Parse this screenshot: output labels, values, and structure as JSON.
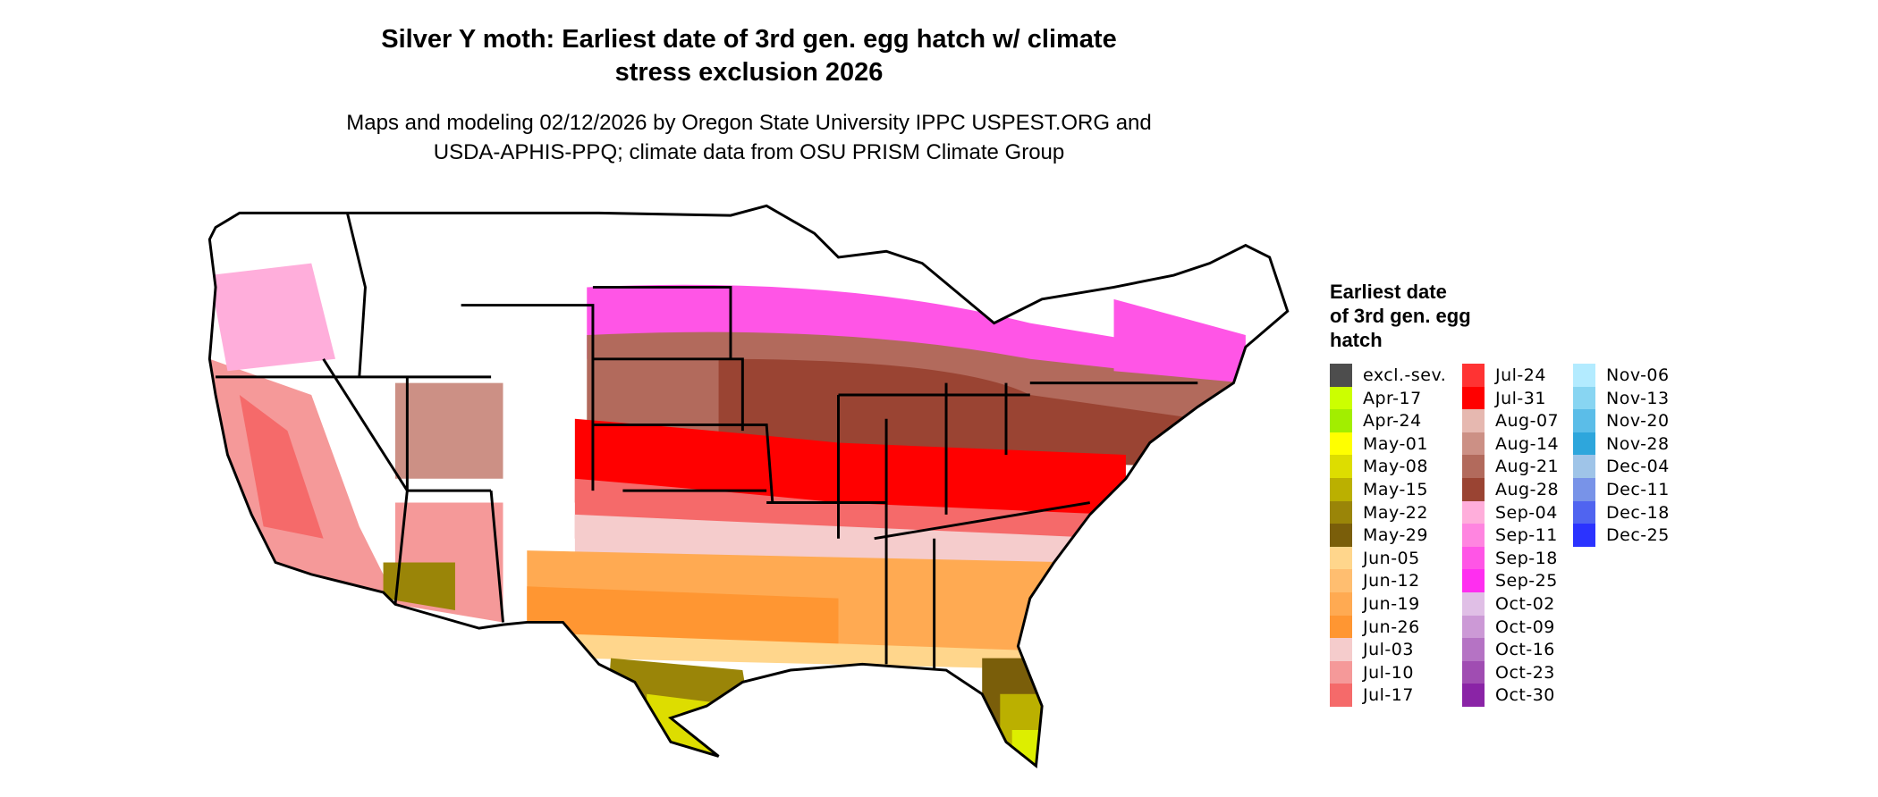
{
  "header": {
    "title_line1": "Silver Y moth: Earliest date of 3rd gen. egg hatch w/ climate",
    "title_line2": "stress exclusion 2026",
    "subtitle_line1": "Maps and modeling 02/12/2026 by Oregon State University IPPC USPEST.ORG and",
    "subtitle_line2": "USDA-APHIS-PPQ; climate data from OSU PRISM Climate Group"
  },
  "legend": {
    "title_line1": "Earliest date",
    "title_line2": "of 3rd gen. egg",
    "title_line3": "hatch",
    "columns": [
      [
        {
          "label": "excl.-sev.",
          "color": "#4d4d4d"
        },
        {
          "label": "Apr-17",
          "color": "#ccff00"
        },
        {
          "label": "Apr-24",
          "color": "#a2ee00"
        },
        {
          "label": "May-01",
          "color": "#ffff00"
        },
        {
          "label": "May-08",
          "color": "#dddd00"
        },
        {
          "label": "May-15",
          "color": "#bbb000"
        },
        {
          "label": "May-22",
          "color": "#9a8508"
        },
        {
          "label": "May-29",
          "color": "#7a5e0a"
        },
        {
          "label": "Jun-05",
          "color": "#ffd68c"
        },
        {
          "label": "Jun-12",
          "color": "#ffbe70"
        },
        {
          "label": "Jun-19",
          "color": "#ffaa52"
        },
        {
          "label": "Jun-26",
          "color": "#ff9632"
        },
        {
          "label": "Jul-03",
          "color": "#f5cccc"
        },
        {
          "label": "Jul-10",
          "color": "#f59999"
        },
        {
          "label": "Jul-17",
          "color": "#f56a6a"
        }
      ],
      [
        {
          "label": "Jul-24",
          "color": "#ff3333"
        },
        {
          "label": "Jul-31",
          "color": "#ff0000"
        },
        {
          "label": "Aug-07",
          "color": "#e6b8b0"
        },
        {
          "label": "Aug-14",
          "color": "#cc9085"
        },
        {
          "label": "Aug-21",
          "color": "#b26a5c"
        },
        {
          "label": "Aug-28",
          "color": "#9a4433"
        },
        {
          "label": "Sep-04",
          "color": "#ffaedb"
        },
        {
          "label": "Sep-11",
          "color": "#ff85e0"
        },
        {
          "label": "Sep-18",
          "color": "#ff55e6"
        },
        {
          "label": "Sep-25",
          "color": "#ff2ef0"
        },
        {
          "label": "Oct-02",
          "color": "#e0bfe6"
        },
        {
          "label": "Oct-09",
          "color": "#cc99d6"
        },
        {
          "label": "Oct-16",
          "color": "#b573c4"
        },
        {
          "label": "Oct-23",
          "color": "#a04db2"
        },
        {
          "label": "Oct-30",
          "color": "#8a24a6"
        }
      ],
      [
        {
          "label": "Nov-06",
          "color": "#b3ebff"
        },
        {
          "label": "Nov-13",
          "color": "#88d5f2"
        },
        {
          "label": "Nov-20",
          "color": "#5bbde8"
        },
        {
          "label": "Nov-28",
          "color": "#2ea6dc"
        },
        {
          "label": "Dec-04",
          "color": "#9fc4e8"
        },
        {
          "label": "Dec-11",
          "color": "#7893e8"
        },
        {
          "label": "Dec-18",
          "color": "#5064f0"
        },
        {
          "label": "Dec-25",
          "color": "#2b33ff"
        }
      ]
    ]
  }
}
